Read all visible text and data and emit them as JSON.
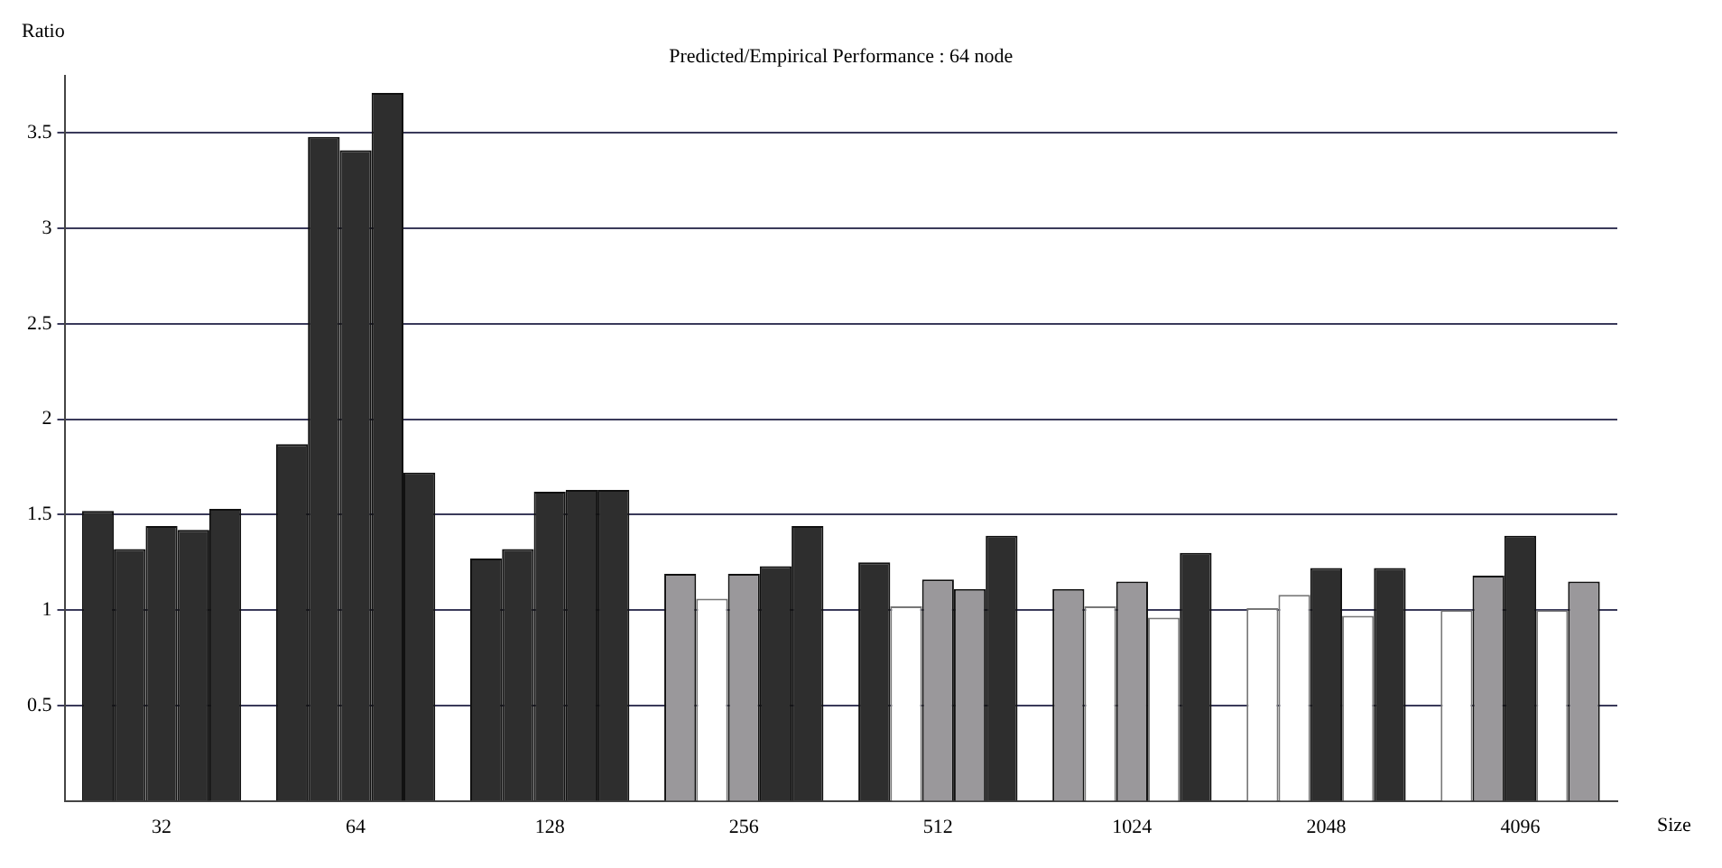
{
  "chart_data": {
    "type": "bar",
    "title": "Predicted/Empirical Performance : 64 node",
    "xlabel": "Size",
    "ylabel": "Ratio",
    "categories": [
      "32",
      "64",
      "128",
      "256",
      "512",
      "1024",
      "2048",
      "4096"
    ],
    "series": [
      {
        "values": [
          1.52,
          1.87,
          1.27,
          1.19,
          1.25,
          1.11,
          1.01,
          1.0
        ],
        "colors": [
          "#2e2e2e",
          "#2e2e2e",
          "#2e2e2e",
          "#9a989b",
          "#2e2e2e",
          "#9a989b",
          "#ffffff",
          "#ffffff"
        ]
      },
      {
        "values": [
          1.32,
          3.48,
          1.32,
          1.06,
          1.02,
          1.02,
          1.08,
          1.18
        ],
        "colors": [
          "#2e2e2e",
          "#2e2e2e",
          "#2e2e2e",
          "#ffffff",
          "#ffffff",
          "#ffffff",
          "#ffffff",
          "#9a989b"
        ]
      },
      {
        "values": [
          1.44,
          3.41,
          1.62,
          1.19,
          1.16,
          1.15,
          1.22,
          1.39
        ],
        "colors": [
          "#2e2e2e",
          "#2e2e2e",
          "#2e2e2e",
          "#9a989b",
          "#9a989b",
          "#9a989b",
          "#2e2e2e",
          "#2e2e2e"
        ]
      },
      {
        "values": [
          1.42,
          3.71,
          1.63,
          1.23,
          1.11,
          0.96,
          0.97,
          1.0
        ],
        "colors": [
          "#2e2e2e",
          "#2e2e2e",
          "#2e2e2e",
          "#2e2e2e",
          "#9a989b",
          "#ffffff",
          "#ffffff",
          "#ffffff"
        ]
      },
      {
        "values": [
          1.53,
          1.72,
          1.63,
          1.44,
          1.39,
          1.3,
          1.22,
          1.15
        ],
        "colors": [
          "#2e2e2e",
          "#2e2e2e",
          "#2e2e2e",
          "#2e2e2e",
          "#2e2e2e",
          "#2e2e2e",
          "#2e2e2e",
          "#9a989b"
        ]
      }
    ],
    "ylim": [
      0,
      3.8
    ],
    "yticks": [
      0.5,
      1,
      1.5,
      2,
      2.5,
      3,
      3.5
    ],
    "grid": "y",
    "legend": false
  }
}
